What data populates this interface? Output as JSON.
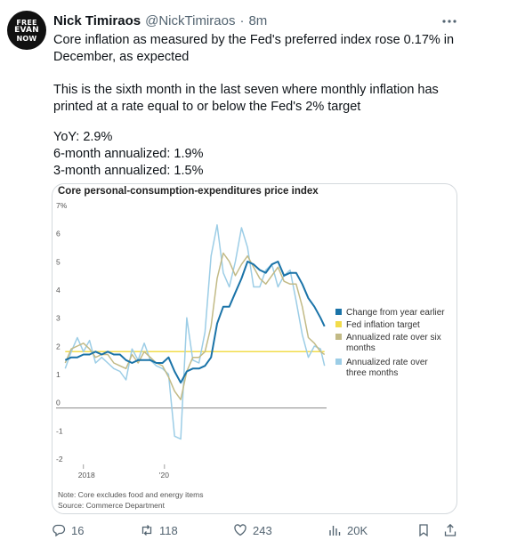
{
  "tweet": {
    "avatar_lines": [
      "FREE",
      "EVAN",
      "NOW"
    ],
    "display_name": "Nick Timiraos",
    "handle": "@NickTimiraos",
    "separator": "·",
    "time": "8m",
    "paragraph_1": "Core inflation as measured by the Fed's preferred index rose 0.17% in December, as expected",
    "paragraph_2": "This is the sixth month in the last seven where monthly inflation has printed at a rate equal to or below the Fed's 2% target",
    "stats": [
      "YoY: 2.9%",
      "6-month annualized: 1.9%",
      "3-month annualized: 1.5%"
    ]
  },
  "actions": {
    "replies": "16",
    "reposts": "118",
    "likes": "243",
    "views": "20K"
  },
  "icons": {
    "more": "more-icon",
    "reply": "reply-icon",
    "repost": "repost-icon",
    "like": "heart-icon",
    "views": "views-icon",
    "bookmark": "bookmark-icon",
    "share": "share-icon"
  },
  "chart_data": {
    "type": "line",
    "title": "Core personal-consumption-expenditures price index",
    "ylim": [
      -2,
      7
    ],
    "y_ticks": [
      "7%",
      "6",
      "5",
      "4",
      "3",
      "2",
      "1",
      "0",
      "-1",
      "-2"
    ],
    "x_ticks": [
      "2018",
      "'20"
    ],
    "xlim": [
      2017.5,
      2024.0
    ],
    "note": "Note: Core excludes food and energy items",
    "source": "Source: Commerce Department",
    "legend_position": "right",
    "colors": {
      "yoy": "#1a73a8",
      "target": "#f2dc4b",
      "six_month": "#c2ba86",
      "three_month": "#9ccde6",
      "zero_line": "#888888"
    },
    "series": [
      {
        "name": "Change from year earlier",
        "key": "yoy",
        "x": [
          2017.55,
          2017.7,
          2017.85,
          2018.0,
          2018.15,
          2018.3,
          2018.45,
          2018.6,
          2018.75,
          2018.9,
          2019.05,
          2019.2,
          2019.35,
          2019.5,
          2019.65,
          2019.8,
          2019.95,
          2020.1,
          2020.25,
          2020.4,
          2020.55,
          2020.7,
          2020.85,
          2021.0,
          2021.15,
          2021.3,
          2021.45,
          2021.6,
          2021.75,
          2021.9,
          2022.05,
          2022.2,
          2022.35,
          2022.5,
          2022.65,
          2022.8,
          2022.95,
          2023.1,
          2023.25,
          2023.4,
          2023.55,
          2023.7,
          2023.85,
          2023.95
        ],
        "values": [
          1.7,
          1.8,
          1.8,
          1.9,
          1.9,
          2.0,
          1.9,
          2.0,
          1.9,
          1.9,
          1.7,
          1.6,
          1.7,
          1.7,
          1.7,
          1.6,
          1.6,
          1.8,
          1.3,
          0.9,
          1.3,
          1.4,
          1.4,
          1.5,
          1.8,
          3.0,
          3.6,
          3.6,
          4.1,
          4.6,
          5.2,
          5.1,
          4.9,
          4.8,
          5.1,
          5.2,
          4.7,
          4.8,
          4.8,
          4.4,
          3.9,
          3.6,
          3.2,
          2.9
        ]
      },
      {
        "name": "Fed inflation target",
        "key": "target",
        "x": [
          2017.55,
          2023.95
        ],
        "values": [
          2.0,
          2.0
        ]
      },
      {
        "name": "Annualized rate over six months",
        "key": "six_month",
        "x": [
          2017.55,
          2017.7,
          2017.85,
          2018.0,
          2018.15,
          2018.3,
          2018.45,
          2018.6,
          2018.75,
          2018.9,
          2019.05,
          2019.2,
          2019.35,
          2019.5,
          2019.65,
          2019.8,
          2019.95,
          2020.1,
          2020.25,
          2020.4,
          2020.55,
          2020.7,
          2020.85,
          2021.0,
          2021.15,
          2021.3,
          2021.45,
          2021.6,
          2021.75,
          2021.9,
          2022.05,
          2022.2,
          2022.35,
          2022.5,
          2022.65,
          2022.8,
          2022.95,
          2023.1,
          2023.25,
          2023.4,
          2023.55,
          2023.7,
          2023.85,
          2023.95
        ],
        "values": [
          1.6,
          2.1,
          2.2,
          2.3,
          2.1,
          1.8,
          1.9,
          1.9,
          1.6,
          1.5,
          1.4,
          1.9,
          1.6,
          2.0,
          1.8,
          1.6,
          1.5,
          1.1,
          0.6,
          0.3,
          1.3,
          1.8,
          1.8,
          2.0,
          2.9,
          4.6,
          5.5,
          5.2,
          4.7,
          5.1,
          5.4,
          5.0,
          4.6,
          4.4,
          4.7,
          5.0,
          4.5,
          4.4,
          4.4,
          3.6,
          2.5,
          2.3,
          2.0,
          1.9
        ]
      },
      {
        "name": "Annualized rate over three months",
        "key": "three_month",
        "x": [
          2017.55,
          2017.7,
          2017.85,
          2018.0,
          2018.15,
          2018.3,
          2018.45,
          2018.6,
          2018.75,
          2018.9,
          2019.05,
          2019.2,
          2019.35,
          2019.5,
          2019.65,
          2019.8,
          2019.95,
          2020.1,
          2020.25,
          2020.4,
          2020.55,
          2020.7,
          2020.85,
          2021.0,
          2021.15,
          2021.3,
          2021.45,
          2021.6,
          2021.75,
          2021.9,
          2022.05,
          2022.2,
          2022.35,
          2022.5,
          2022.65,
          2022.8,
          2022.95,
          2023.1,
          2023.25,
          2023.4,
          2023.55,
          2023.7,
          2023.85,
          2023.95
        ],
        "values": [
          1.4,
          2.0,
          2.5,
          2.0,
          2.4,
          1.6,
          1.8,
          1.6,
          1.4,
          1.3,
          1.0,
          2.1,
          1.7,
          2.3,
          1.7,
          1.5,
          1.4,
          1.2,
          -1.0,
          -1.1,
          3.2,
          1.7,
          1.6,
          2.7,
          5.4,
          6.5,
          4.8,
          4.3,
          5.2,
          6.4,
          5.7,
          4.3,
          4.3,
          4.9,
          5.1,
          4.3,
          4.7,
          4.9,
          3.8,
          2.6,
          1.8,
          2.2,
          2.1,
          1.5
        ]
      }
    ]
  }
}
